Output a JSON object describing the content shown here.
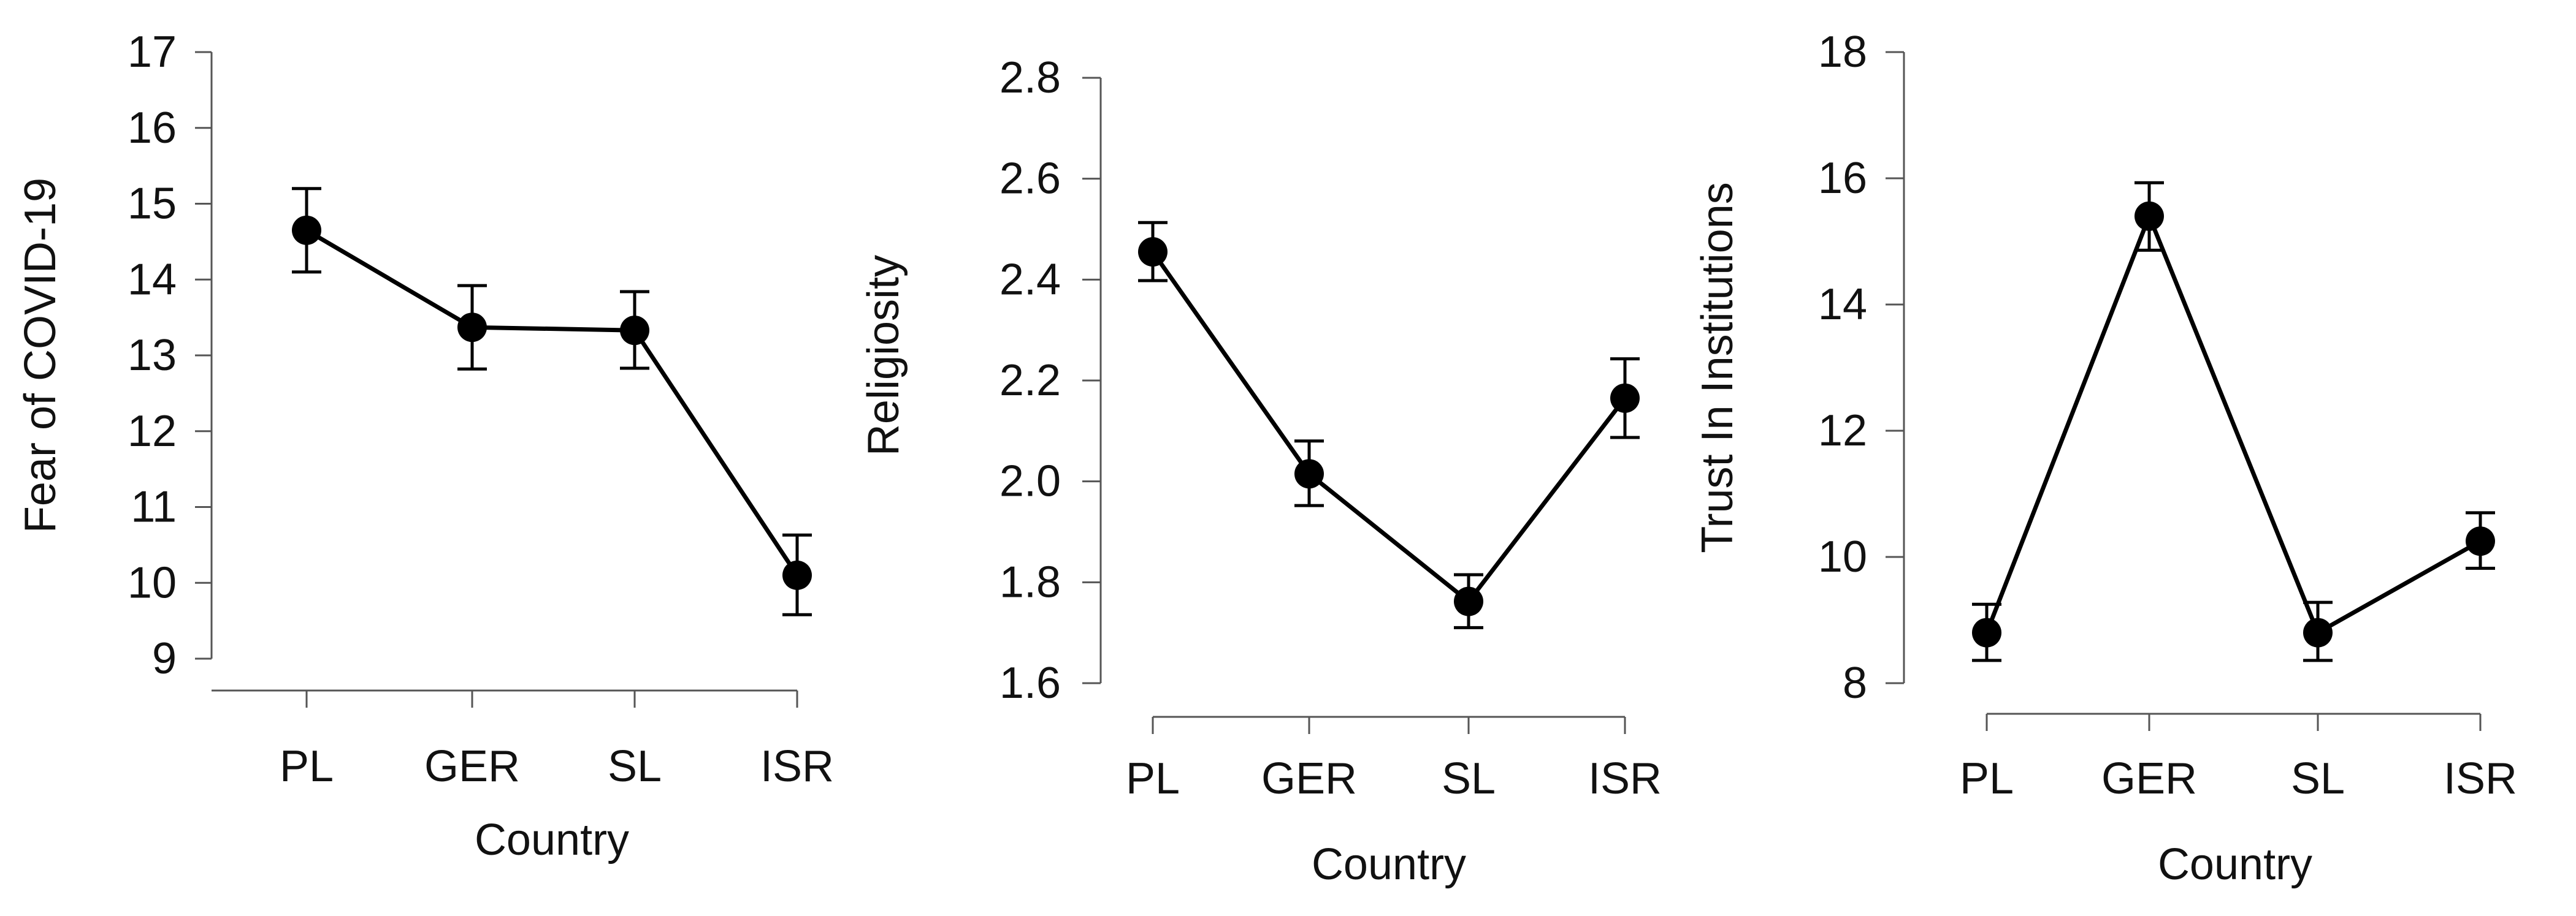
{
  "chart_data": [
    {
      "type": "line",
      "categories": [
        "PL",
        "GER",
        "SL",
        "ISR"
      ],
      "series": [
        {
          "values": [
            14.65,
            13.37,
            13.33,
            10.1
          ],
          "error_low": [
            14.1,
            12.82,
            12.83,
            9.58
          ],
          "error_high": [
            15.2,
            13.92,
            13.84,
            10.63
          ]
        }
      ],
      "xlabel": "Country",
      "ylabel": "Fear of COVID-19",
      "ylim": [
        9,
        17
      ],
      "yticks": [
        9,
        10,
        11,
        12,
        13,
        14,
        15,
        16,
        17
      ],
      "grid": false,
      "markers": "filled-circle",
      "color": "#000000"
    },
    {
      "type": "line",
      "categories": [
        "PL",
        "GER",
        "SL",
        "ISR"
      ],
      "series": [
        {
          "values": [
            2.455,
            2.015,
            1.762,
            2.165
          ],
          "error_low": [
            2.398,
            1.952,
            1.71,
            2.087
          ],
          "error_high": [
            2.513,
            2.08,
            1.815,
            2.243
          ]
        }
      ],
      "xlabel": "Country",
      "ylabel": "Religiosity",
      "ylim": [
        1.6,
        2.8
      ],
      "yticks": [
        "1.6",
        "1.8",
        "2.0",
        "2.2",
        "2.4",
        "2.6",
        "2.8"
      ],
      "grid": false,
      "markers": "filled-circle",
      "color": "#000000"
    },
    {
      "type": "line",
      "categories": [
        "PL",
        "GER",
        "SL",
        "ISR"
      ],
      "series": [
        {
          "values": [
            8.8,
            15.4,
            8.8,
            10.25
          ],
          "error_low": [
            8.36,
            14.86,
            8.36,
            9.82
          ],
          "error_high": [
            9.25,
            15.93,
            9.28,
            10.7
          ]
        }
      ],
      "xlabel": "Country",
      "ylabel": "Trust In Institutions",
      "ylim": [
        8,
        18
      ],
      "yticks": [
        8,
        10,
        12,
        14,
        16,
        18
      ],
      "grid": false,
      "markers": "filled-circle",
      "color": "#000000"
    }
  ]
}
